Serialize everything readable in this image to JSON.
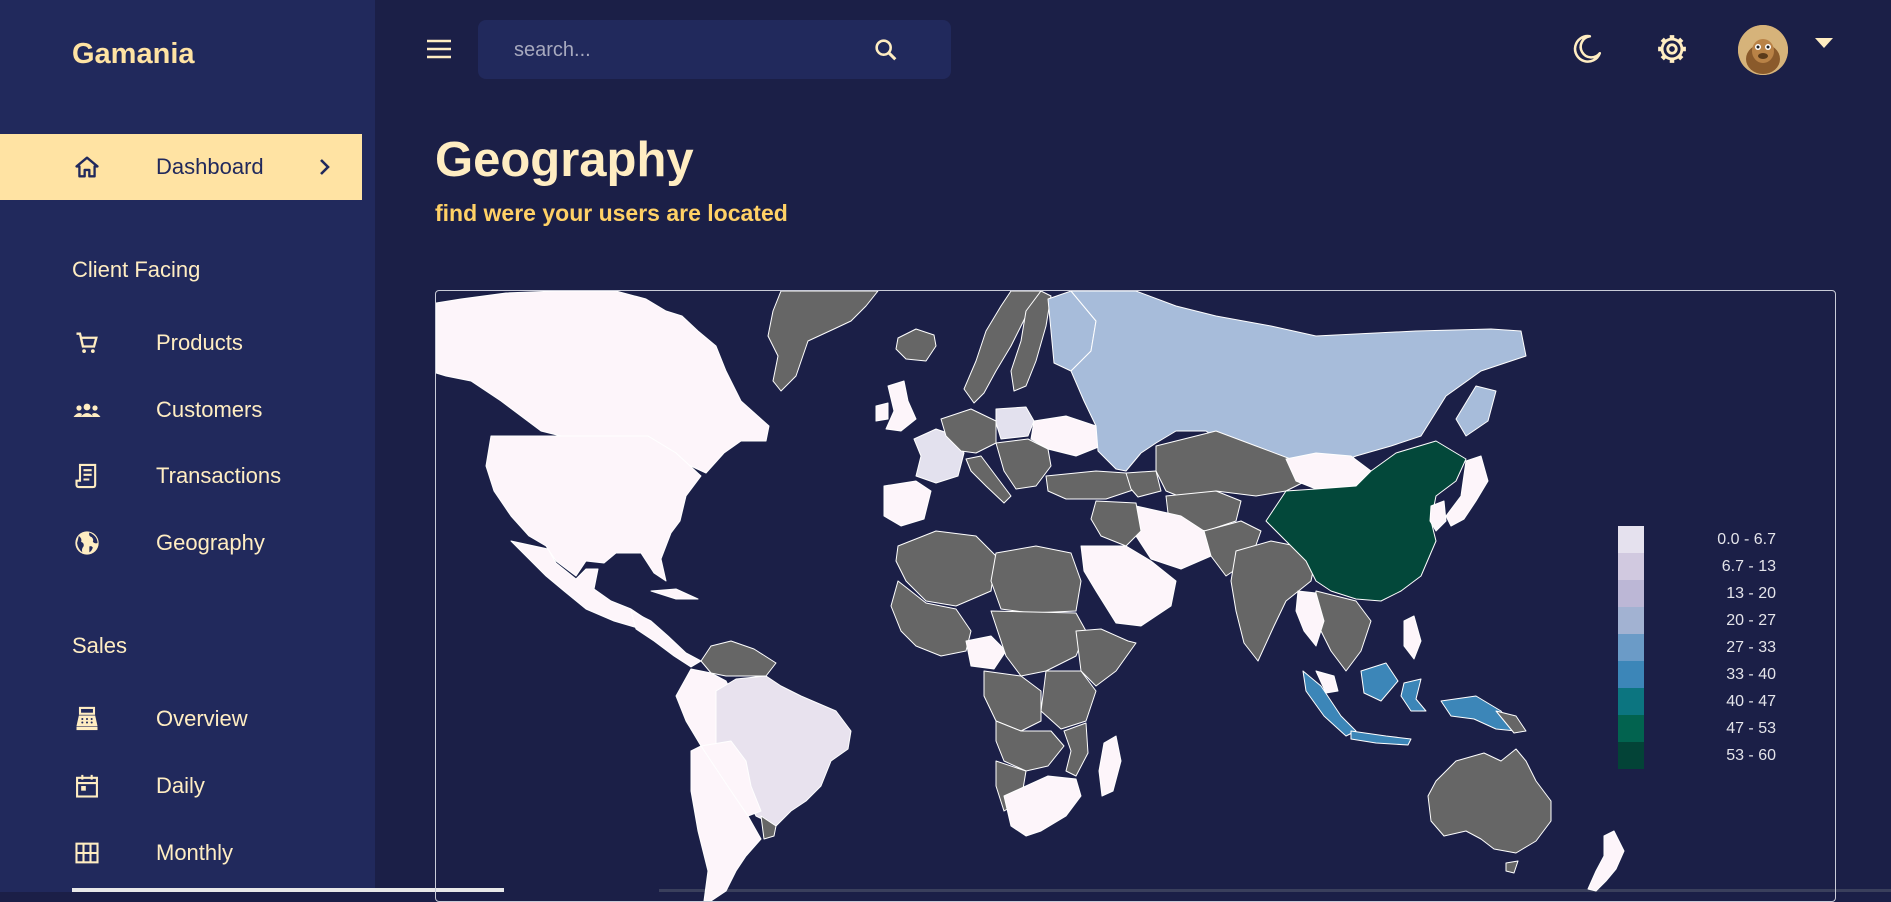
{
  "app": {
    "brand": "Gamania"
  },
  "topbar": {
    "search_placeholder": "search..."
  },
  "sidebar": {
    "dashboard": {
      "label": "Dashboard"
    },
    "sections": [
      {
        "title": "Client Facing"
      },
      {
        "title": "Sales"
      }
    ],
    "items": [
      {
        "label": "Products",
        "icon": "cart-icon"
      },
      {
        "label": "Customers",
        "icon": "groups-icon"
      },
      {
        "label": "Transactions",
        "icon": "receipt-icon"
      },
      {
        "label": "Geography",
        "icon": "globe-icon"
      },
      {
        "label": "Overview",
        "icon": "point-of-sale-icon"
      },
      {
        "label": "Daily",
        "icon": "calendar-icon"
      },
      {
        "label": "Monthly",
        "icon": "grid-icon"
      }
    ]
  },
  "header": {
    "title": "Geography",
    "subtitle": "find were your users are located"
  },
  "legend": {
    "items": [
      {
        "range": "0.0 - 6.7",
        "color": "#e5e1ee"
      },
      {
        "range": "6.7 - 13",
        "color": "#d1c9e0"
      },
      {
        "range": "13 - 20",
        "color": "#bcb7d6"
      },
      {
        "range": "20 - 27",
        "color": "#a2b2d2"
      },
      {
        "range": "27 - 33",
        "color": "#6b9bc7"
      },
      {
        "range": "33 - 40",
        "color": "#3c86b8"
      },
      {
        "range": "40 - 47",
        "color": "#0c7580"
      },
      {
        "range": "47 - 53",
        "color": "#02634f"
      },
      {
        "range": "53 - 60",
        "color": "#034337"
      }
    ]
  },
  "colors": {
    "sidebar_bg": "#21295c",
    "main_bg": "#1b1f47",
    "accent": "#ffe3a3",
    "map_no_data": "#666666",
    "map_low": "#fdf5fa"
  }
}
